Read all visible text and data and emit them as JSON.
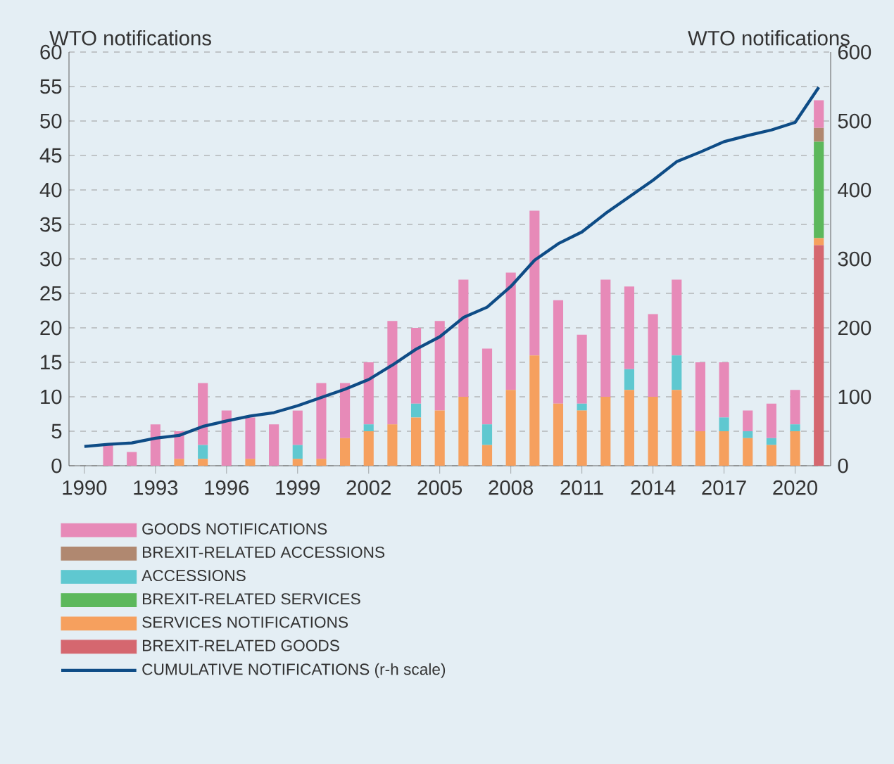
{
  "chart_data": {
    "type": "bar",
    "stacked": true,
    "ylabel": "WTO notifications",
    "y2label": "WTO notifications",
    "x": [
      1991,
      1992,
      1993,
      1994,
      1995,
      1996,
      1997,
      1998,
      1999,
      2000,
      2001,
      2002,
      2003,
      2004,
      2005,
      2006,
      2007,
      2008,
      2009,
      2010,
      2011,
      2012,
      2013,
      2014,
      2015,
      2016,
      2017,
      2018,
      2019,
      2020,
      2021
    ],
    "xlim": [
      1989.35,
      2021.5
    ],
    "xticks": [
      1990,
      1993,
      1996,
      1999,
      2002,
      2005,
      2008,
      2011,
      2014,
      2017,
      2020
    ],
    "ylim": [
      0,
      60
    ],
    "yticks": [
      0,
      5,
      10,
      15,
      20,
      25,
      30,
      35,
      40,
      45,
      50,
      55,
      60
    ],
    "y2lim": [
      0,
      600
    ],
    "y2ticks": [
      0,
      100,
      200,
      300,
      400,
      500,
      600
    ],
    "grid": "y",
    "legend": "bottom",
    "series": [
      {
        "name": "BREXIT-RELATED GOODS",
        "color": "#d5676f",
        "values": [
          0,
          0,
          0,
          0,
          0,
          0,
          0,
          0,
          0,
          0,
          0,
          0,
          0,
          0,
          0,
          0,
          0,
          0,
          0,
          0,
          0,
          0,
          0,
          0,
          0,
          0,
          0,
          0,
          0,
          0,
          32
        ]
      },
      {
        "name": "SERVICES NOTIFICATIONS",
        "color": "#f6a05e",
        "values": [
          0,
          0,
          0,
          1,
          1,
          0,
          1,
          0,
          1,
          1,
          4,
          5,
          6,
          7,
          8,
          10,
          3,
          11,
          16,
          9,
          8,
          10,
          11,
          10,
          11,
          5,
          5,
          4,
          3,
          5,
          1
        ]
      },
      {
        "name": "BREXIT-RELATED SERVICES",
        "color": "#5cb85c",
        "values": [
          0,
          0,
          0,
          0,
          0,
          0,
          0,
          0,
          0,
          0,
          0,
          0,
          0,
          0,
          0,
          0,
          0,
          0,
          0,
          0,
          0,
          0,
          0,
          0,
          0,
          0,
          0,
          0,
          0,
          0,
          14
        ]
      },
      {
        "name": "ACCESSIONS",
        "color": "#5fc8d0",
        "values": [
          0,
          0,
          0,
          0,
          2,
          0,
          0,
          0,
          2,
          0,
          0,
          1,
          0,
          2,
          0,
          0,
          3,
          0,
          0,
          0,
          1,
          0,
          3,
          0,
          5,
          0,
          2,
          1,
          1,
          1,
          0
        ]
      },
      {
        "name": "BREXIT-RELATED ACCESSIONS",
        "color": "#b08870",
        "values": [
          0,
          0,
          0,
          0,
          0,
          0,
          0,
          0,
          0,
          0,
          0,
          0,
          0,
          0,
          0,
          0,
          0,
          0,
          0,
          0,
          0,
          0,
          0,
          0,
          0,
          0,
          0,
          0,
          0,
          0,
          2
        ]
      },
      {
        "name": "GOODS NOTIFICATIONS",
        "color": "#e78ab8",
        "values": [
          3,
          2,
          6,
          4,
          9,
          8,
          6,
          6,
          5,
          11,
          8,
          9,
          15,
          11,
          13,
          17,
          11,
          17,
          21,
          15,
          10,
          17,
          12,
          12,
          11,
          10,
          8,
          3,
          5,
          5,
          4
        ]
      },
      {
        "name": "CUMULATIVE NOTIFICATIONS (r-h scale)",
        "type": "line",
        "axis": "y2",
        "color": "#0e4c86",
        "marker": "none",
        "line_style": "solid",
        "x": [
          1990,
          1991,
          1992,
          1993,
          1994,
          1995,
          1996,
          1997,
          1998,
          1999,
          2000,
          2001,
          2002,
          2003,
          2004,
          2005,
          2006,
          2007,
          2008,
          2009,
          2010,
          2011,
          2012,
          2013,
          2014,
          2015,
          2016,
          2017,
          2018,
          2019,
          2020,
          2021
        ],
        "values": [
          28,
          31,
          33,
          40,
          44,
          57,
          65,
          72,
          77,
          87,
          99,
          111,
          125,
          146,
          169,
          187,
          215,
          230,
          260,
          298,
          322,
          339,
          366,
          390,
          414,
          441,
          455,
          470,
          479,
          487,
          498,
          549
        ]
      }
    ]
  }
}
